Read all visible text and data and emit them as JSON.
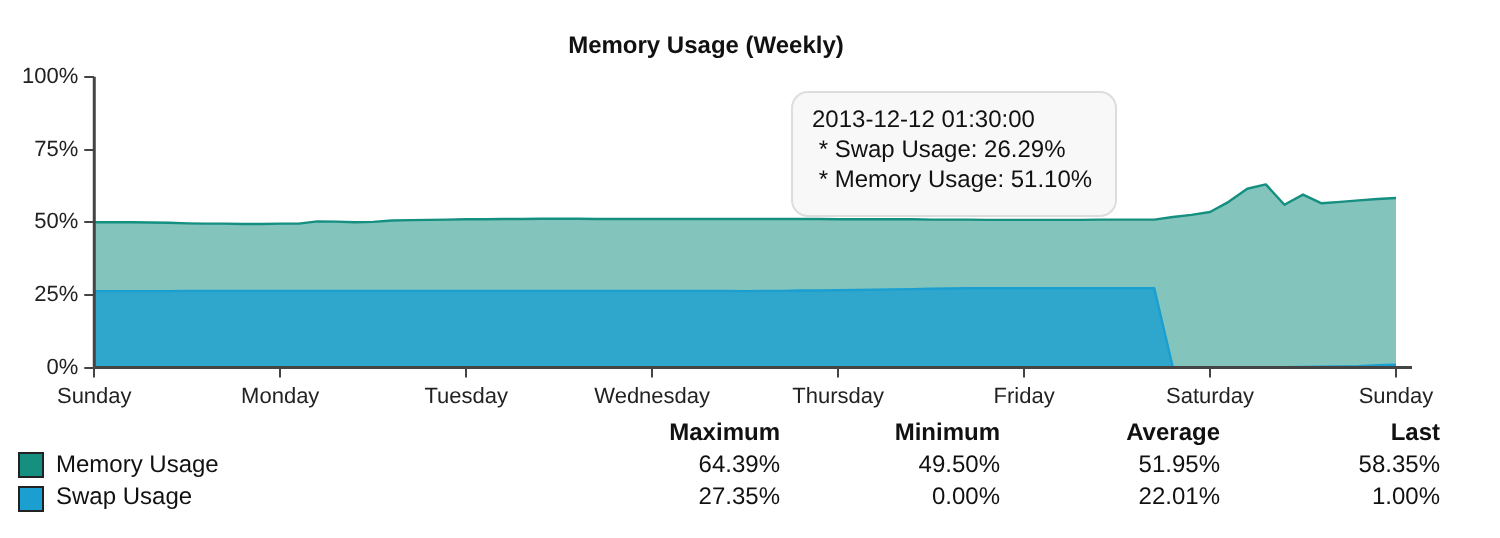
{
  "chart_data": {
    "type": "area",
    "title": "Memory Usage (Weekly)",
    "categories": [
      "Sunday",
      null,
      null,
      null,
      null,
      null,
      null,
      null,
      null,
      null,
      "Monday",
      null,
      null,
      null,
      null,
      null,
      null,
      null,
      null,
      null,
      "Tuesday",
      null,
      null,
      null,
      null,
      null,
      null,
      null,
      null,
      null,
      "Wednesday",
      null,
      null,
      null,
      null,
      null,
      null,
      null,
      null,
      null,
      "Thursday",
      null,
      null,
      null,
      null,
      null,
      null,
      null,
      null,
      null,
      "Friday",
      null,
      null,
      null,
      null,
      null,
      null,
      null,
      null,
      null,
      "Saturday",
      null,
      null,
      null,
      null,
      null,
      null,
      null,
      null,
      null,
      "Sunday"
    ],
    "series": [
      {
        "name": "Memory Usage",
        "color": "#148f80",
        "values": [
          50.0,
          50.0,
          50.0,
          49.9,
          49.8,
          49.6,
          49.5,
          49.5,
          49.4,
          49.4,
          49.5,
          49.5,
          50.3,
          50.2,
          50.0,
          50.1,
          50.6,
          50.7,
          50.8,
          50.9,
          51.0,
          51.0,
          51.1,
          51.1,
          51.2,
          51.2,
          51.2,
          51.1,
          51.1,
          51.1,
          51.1,
          51.1,
          51.1,
          51.1,
          51.1,
          51.1,
          51.1,
          51.1,
          51.1,
          51.1,
          51.0,
          51.0,
          51.0,
          51.0,
          51.0,
          50.9,
          50.9,
          50.9,
          50.8,
          50.8,
          50.8,
          50.8,
          50.8,
          50.8,
          50.9,
          50.9,
          50.9,
          50.9,
          51.8,
          52.5,
          53.5,
          57.0,
          61.5,
          63.0,
          56.0,
          59.5,
          56.5,
          57.0,
          57.5,
          58.0,
          58.3
        ]
      },
      {
        "name": "Swap Usage",
        "color": "#1a9fd0",
        "values": [
          26.3,
          26.3,
          26.3,
          26.3,
          26.3,
          26.4,
          26.4,
          26.4,
          26.4,
          26.4,
          26.4,
          26.4,
          26.4,
          26.4,
          26.4,
          26.4,
          26.4,
          26.4,
          26.4,
          26.4,
          26.4,
          26.4,
          26.4,
          26.4,
          26.4,
          26.4,
          26.4,
          26.4,
          26.4,
          26.4,
          26.4,
          26.4,
          26.4,
          26.4,
          26.4,
          26.3,
          26.4,
          26.4,
          26.5,
          26.5,
          26.6,
          26.7,
          26.8,
          26.9,
          27.0,
          27.1,
          27.2,
          27.3,
          27.3,
          27.3,
          27.3,
          27.3,
          27.3,
          27.3,
          27.3,
          27.3,
          27.3,
          27.3,
          0,
          0,
          0,
          0,
          0,
          0,
          0.1,
          0.2,
          0.3,
          0.4,
          0.5,
          0.8,
          1.0
        ]
      }
    ],
    "ylim": [
      0,
      100
    ],
    "yticks": [
      {
        "value": 0,
        "label": "0%"
      },
      {
        "value": 25,
        "label": "25%"
      },
      {
        "value": 50,
        "label": "50%"
      },
      {
        "value": 75,
        "label": "75%"
      },
      {
        "value": 100,
        "label": "100%"
      }
    ],
    "grid": false,
    "legend": "bottom",
    "annotations": [
      "2013-12-12 01:30:00",
      " * Swap Usage: 26.29%",
      " * Memory Usage: 51.10%",
      "Maximum",
      "Minimum",
      "Average",
      "Last",
      "64.39%",
      "49.50%",
      "51.95%",
      "58.35%",
      "27.35%",
      "0.00%",
      "22.01%",
      "1.00%"
    ]
  }
}
